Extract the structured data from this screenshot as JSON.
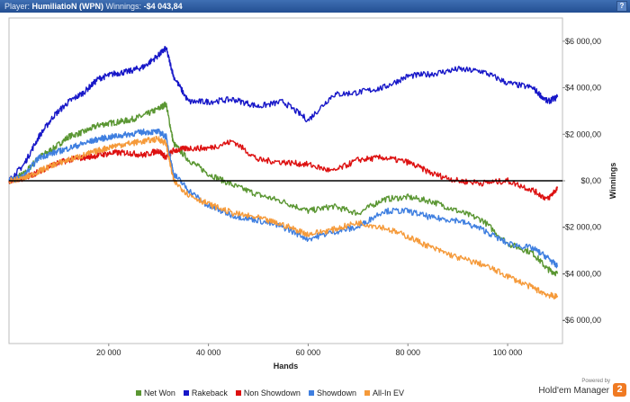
{
  "header": {
    "player_label": "Player:",
    "player_name": "HumiliatioN (WPN)",
    "winnings_label": "Winnings:",
    "winnings_value": "-$4 043,84",
    "help_label": "?"
  },
  "branding": {
    "powered_by": "Powered by",
    "product": "Hold'em Manager",
    "badge": "2"
  },
  "chart_data": {
    "type": "line",
    "xlabel": "Hands",
    "ylabel": "Winnings",
    "xlim": [
      0,
      111000
    ],
    "ylim": [
      -7000,
      7000
    ],
    "x_ticks": [
      20000,
      40000,
      60000,
      80000,
      100000
    ],
    "x_tick_labels": [
      "20 000",
      "40 000",
      "60 000",
      "80 000",
      "100 000"
    ],
    "y_ticks": [
      6000,
      4000,
      2000,
      0,
      -2000,
      -4000,
      -6000
    ],
    "y_tick_labels": [
      "$6 000,00",
      "$4 000,00",
      "$2 000,00",
      "$0,00",
      "-$2 000,00",
      "-$4 000,00",
      "-$6 000,00"
    ],
    "y_axis_side": "right",
    "grid": false,
    "legend_position": "bottom",
    "series": [
      {
        "name": "Net Won",
        "color": "#5a9632",
        "x": [
          0,
          3000,
          6000,
          9000,
          12000,
          15000,
          18000,
          21000,
          24000,
          27000,
          30000,
          31500,
          33000,
          36000,
          40000,
          45000,
          50000,
          55000,
          60000,
          65000,
          70000,
          75000,
          80000,
          85000,
          90000,
          95000,
          100000,
          105000,
          108000,
          110000
        ],
        "y": [
          0,
          300,
          1000,
          1400,
          1900,
          2100,
          2400,
          2500,
          2600,
          2800,
          3100,
          3300,
          1600,
          900,
          300,
          -200,
          -600,
          -900,
          -1300,
          -1100,
          -1400,
          -800,
          -700,
          -900,
          -1300,
          -1700,
          -2700,
          -3100,
          -3800,
          -4000
        ]
      },
      {
        "name": "Rakeback",
        "color": "#1717c8",
        "x": [
          0,
          3000,
          6000,
          9000,
          12000,
          15000,
          18000,
          21000,
          24000,
          27000,
          30000,
          31500,
          33000,
          36000,
          40000,
          45000,
          50000,
          55000,
          60000,
          65000,
          70000,
          75000,
          80000,
          85000,
          90000,
          95000,
          100000,
          105000,
          108000,
          110000
        ],
        "y": [
          0,
          700,
          1900,
          2800,
          3400,
          3800,
          4400,
          4600,
          4700,
          4900,
          5400,
          5700,
          4500,
          3400,
          3400,
          3500,
          3200,
          3400,
          2600,
          3700,
          3800,
          4000,
          4500,
          4600,
          4800,
          4700,
          4200,
          4000,
          3400,
          3600
        ]
      },
      {
        "name": "Non Showdown",
        "color": "#dd1010",
        "x": [
          0,
          3000,
          6000,
          9000,
          12000,
          15000,
          18000,
          21000,
          24000,
          27000,
          30000,
          31500,
          33000,
          36000,
          40000,
          45000,
          50000,
          55000,
          60000,
          65000,
          70000,
          75000,
          80000,
          85000,
          90000,
          95000,
          100000,
          105000,
          108000,
          110000
        ],
        "y": [
          0,
          100,
          400,
          700,
          900,
          1000,
          1100,
          1200,
          1200,
          1100,
          1300,
          1000,
          1300,
          1400,
          1400,
          1700,
          900,
          800,
          700,
          400,
          900,
          1000,
          800,
          300,
          0,
          -100,
          0,
          -400,
          -800,
          -300
        ]
      },
      {
        "name": "Showdown",
        "color": "#3f7fe0",
        "x": [
          0,
          3000,
          6000,
          9000,
          12000,
          15000,
          18000,
          21000,
          24000,
          27000,
          30000,
          31500,
          33000,
          36000,
          40000,
          45000,
          50000,
          55000,
          60000,
          65000,
          70000,
          75000,
          80000,
          85000,
          90000,
          95000,
          100000,
          105000,
          108000,
          110000
        ],
        "y": [
          0,
          200,
          1000,
          1200,
          1400,
          1600,
          1800,
          1900,
          2000,
          2100,
          2100,
          1900,
          300,
          -400,
          -1100,
          -1500,
          -1700,
          -2000,
          -2500,
          -2200,
          -2000,
          -1300,
          -1300,
          -1600,
          -1700,
          -2100,
          -2700,
          -2900,
          -3300,
          -3700
        ]
      },
      {
        "name": "All-In EV",
        "color": "#f59a3a",
        "x": [
          0,
          3000,
          6000,
          9000,
          12000,
          15000,
          18000,
          21000,
          24000,
          27000,
          30000,
          31500,
          33000,
          36000,
          40000,
          45000,
          50000,
          55000,
          60000,
          65000,
          70000,
          75000,
          80000,
          85000,
          90000,
          95000,
          100000,
          105000,
          108000,
          110000
        ],
        "y": [
          0,
          100,
          400,
          700,
          900,
          1100,
          1300,
          1500,
          1600,
          1700,
          1800,
          1600,
          0,
          -600,
          -1000,
          -1400,
          -1600,
          -1900,
          -2300,
          -2100,
          -1800,
          -2000,
          -2400,
          -2900,
          -3300,
          -3600,
          -4100,
          -4600,
          -4900,
          -5000
        ]
      }
    ]
  }
}
